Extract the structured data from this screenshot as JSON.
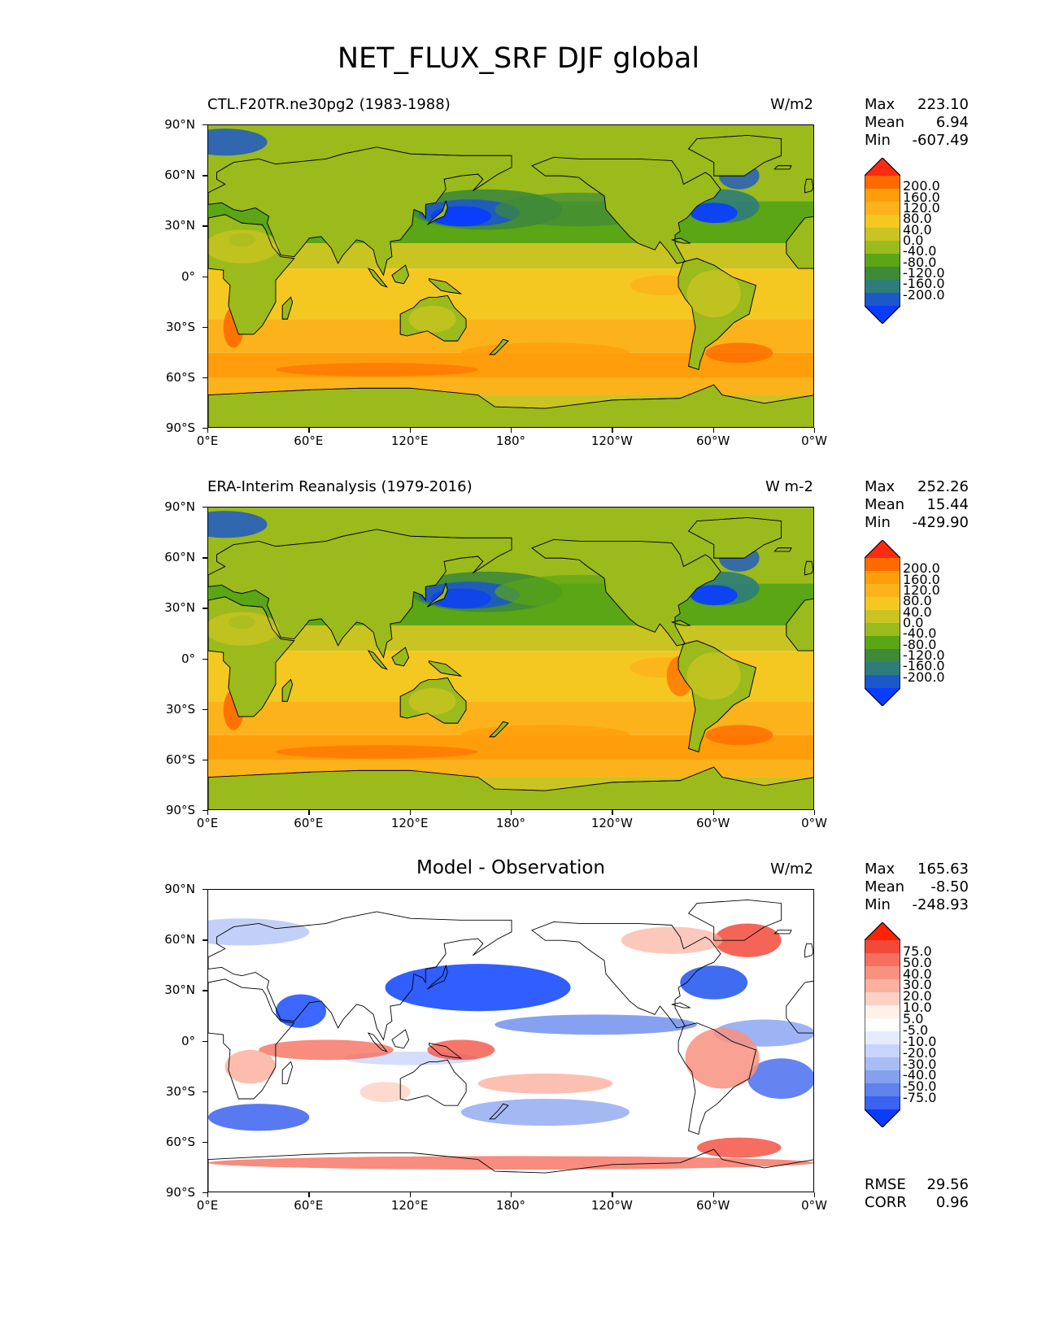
{
  "title": "NET_FLUX_SRF DJF global",
  "axes": {
    "lat_labels": [
      "90°N",
      "60°N",
      "30°N",
      "0°",
      "30°S",
      "60°S",
      "90°S"
    ],
    "lon_labels": [
      "0°E",
      "60°E",
      "120°E",
      "180°",
      "120°W",
      "60°W",
      "0°W"
    ]
  },
  "panels": [
    {
      "id": "model",
      "title": "CTL.F20TR.ne30pg2 (1983-1988)",
      "units": "W/m2",
      "stats": {
        "max_label": "Max",
        "max": "223.10",
        "mean_label": "Mean",
        "mean": "6.94",
        "min_label": "Min",
        "min": "-607.49"
      },
      "colorbar": {
        "labels": [
          "200.0",
          "160.0",
          "120.0",
          "80.0",
          "40.0",
          "0.0",
          "-40.0",
          "-80.0",
          "-120.0",
          "-160.0",
          "-200.0"
        ],
        "colors": [
          "#ff2a10",
          "#ff6a00",
          "#ff9e0a",
          "#fcb21a",
          "#f5c821",
          "#c9c422",
          "#9bba1b",
          "#5aa614",
          "#3e8a39",
          "#2e7d7a",
          "#1d58c8",
          "#0a3cff"
        ]
      }
    },
    {
      "id": "obs",
      "title": "ERA-Interim Reanalysis (1979-2016)",
      "units": "W m-2",
      "stats": {
        "max_label": "Max",
        "max": "252.26",
        "mean_label": "Mean",
        "mean": "15.44",
        "min_label": "Min",
        "min": "-429.90"
      },
      "colorbar": {
        "labels": [
          "200.0",
          "160.0",
          "120.0",
          "80.0",
          "40.0",
          "0.0",
          "-40.0",
          "-80.0",
          "-120.0",
          "-160.0",
          "-200.0"
        ],
        "colors": [
          "#ff2a10",
          "#ff6a00",
          "#ff9e0a",
          "#fcb21a",
          "#f5c821",
          "#c9c422",
          "#9bba1b",
          "#5aa614",
          "#3e8a39",
          "#2e7d7a",
          "#1d58c8",
          "#0a3cff"
        ]
      }
    },
    {
      "id": "diff",
      "title": "Model - Observation",
      "units": "W/m2",
      "stats": {
        "max_label": "Max",
        "max": "165.63",
        "mean_label": "Mean",
        "mean": "-8.50",
        "min_label": "Min",
        "min": "-248.93"
      },
      "extra": {
        "rmse_label": "RMSE",
        "rmse": "29.56",
        "corr_label": "CORR",
        "corr": "0.96"
      },
      "colorbar": {
        "labels": [
          "75.0",
          "50.0",
          "40.0",
          "30.0",
          "20.0",
          "10.0",
          "5.0",
          "-5.0",
          "-10.0",
          "-20.0",
          "-30.0",
          "-40.0",
          "-50.0",
          "-75.0"
        ],
        "colors": [
          "#ff2200",
          "#f24a3a",
          "#f56f5f",
          "#f8917f",
          "#fbb0a0",
          "#fcd0c4",
          "#fff0ea",
          "#ffffff",
          "#e6ecff",
          "#c8d4fb",
          "#a8bcf6",
          "#86a0f0",
          "#5f82ec",
          "#3b62f0",
          "#0a3cff"
        ]
      }
    }
  ]
}
